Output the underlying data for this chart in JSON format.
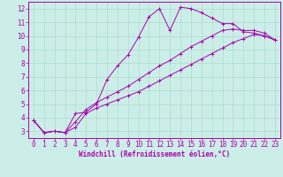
{
  "xlabel": "Windchill (Refroidissement éolien,°C)",
  "bg_color": "#cceee8",
  "grid_color": "#aaddcc",
  "line_color": "#aa00aa",
  "spine_color": "#aa00aa",
  "xlim": [
    -0.5,
    23.5
  ],
  "ylim": [
    2.5,
    12.5
  ],
  "xticks": [
    0,
    1,
    2,
    3,
    4,
    5,
    6,
    7,
    8,
    9,
    10,
    11,
    12,
    13,
    14,
    15,
    16,
    17,
    18,
    19,
    20,
    21,
    22,
    23
  ],
  "yticks": [
    3,
    4,
    5,
    6,
    7,
    8,
    9,
    10,
    11,
    12
  ],
  "line1_x": [
    0,
    1,
    2,
    3,
    4,
    5,
    6,
    7,
    8,
    9,
    10,
    11,
    12,
    13,
    14,
    15,
    16,
    17,
    18,
    19,
    20,
    21,
    22,
    23
  ],
  "line1_y": [
    3.8,
    2.9,
    3.0,
    2.9,
    4.3,
    4.4,
    5.0,
    6.8,
    7.8,
    8.6,
    9.9,
    11.4,
    12.0,
    10.4,
    12.1,
    12.0,
    11.7,
    11.3,
    10.9,
    10.9,
    10.3,
    10.2,
    10.0,
    9.7
  ],
  "line2_x": [
    0,
    1,
    2,
    3,
    4,
    5,
    6,
    7,
    8,
    9,
    10,
    11,
    12,
    13,
    14,
    15,
    16,
    17,
    18,
    19,
    20,
    21,
    22,
    23
  ],
  "line2_y": [
    3.8,
    2.9,
    3.0,
    2.9,
    3.3,
    4.3,
    4.7,
    5.0,
    5.3,
    5.6,
    5.9,
    6.3,
    6.7,
    7.1,
    7.5,
    7.9,
    8.3,
    8.7,
    9.1,
    9.5,
    9.8,
    10.1,
    10.0,
    9.7
  ],
  "line3_x": [
    0,
    1,
    2,
    3,
    4,
    5,
    6,
    7,
    8,
    9,
    10,
    11,
    12,
    13,
    14,
    15,
    16,
    17,
    18,
    19,
    20,
    21,
    22,
    23
  ],
  "line3_y": [
    3.8,
    2.9,
    3.0,
    2.9,
    3.7,
    4.6,
    5.1,
    5.5,
    5.9,
    6.3,
    6.8,
    7.3,
    7.8,
    8.2,
    8.7,
    9.2,
    9.6,
    10.0,
    10.4,
    10.5,
    10.4,
    10.4,
    10.2,
    9.7
  ],
  "tick_fontsize": 5.5,
  "xlabel_fontsize": 5.5,
  "lw": 0.7,
  "marker_size": 2.5
}
